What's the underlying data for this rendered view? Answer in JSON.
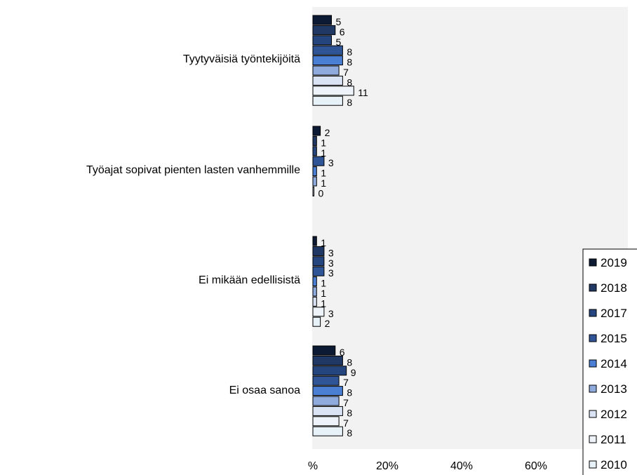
{
  "chart_data": {
    "type": "bar",
    "orientation": "horizontal",
    "categories": [
      "Tyytyväisiä työntekijöitä",
      "Työajat sopivat pienten lasten vanhemmille",
      "Ei mikään edellisistä",
      "Ei osaa sanoa"
    ],
    "series": [
      {
        "name": "2019",
        "color": "#0d1a33",
        "values": [
          5,
          2,
          1,
          6
        ]
      },
      {
        "name": "2018",
        "color": "#1f3864",
        "values": [
          6,
          1,
          3,
          8
        ]
      },
      {
        "name": "2017",
        "color": "#24457d",
        "values": [
          5,
          1,
          3,
          9
        ]
      },
      {
        "name": "2015",
        "color": "#2f5597",
        "values": [
          8,
          3,
          3,
          7
        ]
      },
      {
        "name": "2014",
        "color": "#4a7fd4",
        "values": [
          8,
          1,
          1,
          8
        ]
      },
      {
        "name": "2013",
        "color": "#8faadc",
        "values": [
          7,
          1,
          1,
          7
        ]
      },
      {
        "name": "2012",
        "color": "#dae3f3",
        "values": [
          8,
          0,
          1,
          8
        ]
      },
      {
        "name": "2011",
        "color": "#eef3fa",
        "values": [
          11,
          null,
          3,
          7
        ]
      },
      {
        "name": "2010",
        "color": "#e7f1f8",
        "values": [
          8,
          null,
          2,
          8
        ]
      }
    ],
    "x_ticks": [
      "%",
      "20%",
      "40%",
      "60%"
    ],
    "xlim": [
      0,
      80
    ],
    "legend_position": "bottom-right",
    "plot_background": "#f2f2f2",
    "bar_border_color": "#000000"
  }
}
